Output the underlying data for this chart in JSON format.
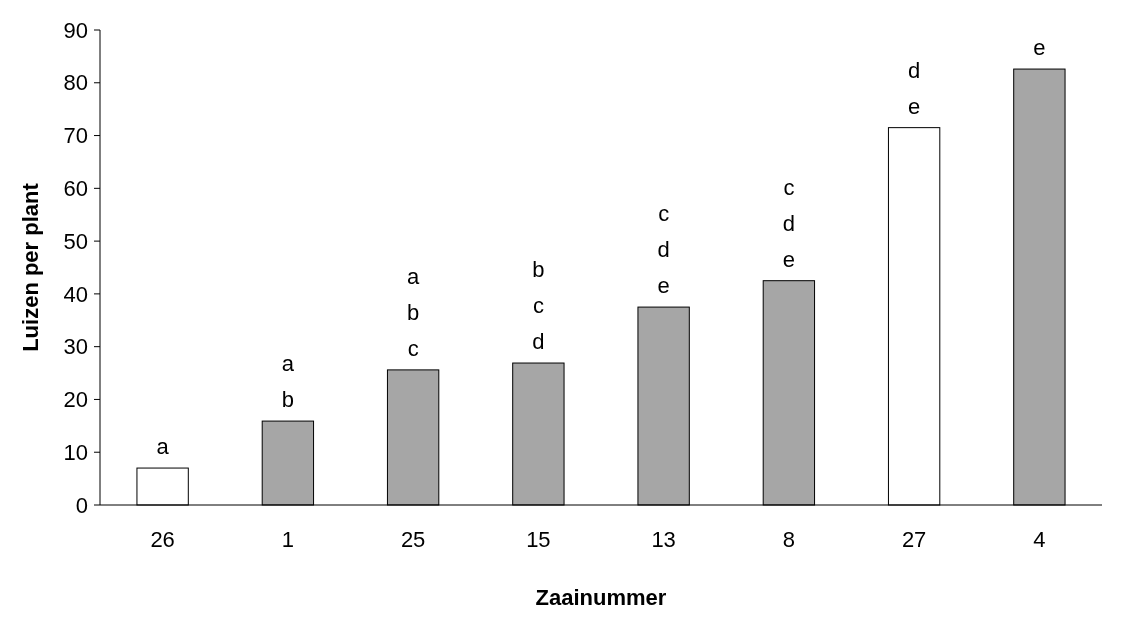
{
  "chart_data": {
    "type": "bar",
    "xlabel": "Zaainummer",
    "ylabel": "Luizen per plant",
    "categories": [
      "26",
      "1",
      "25",
      "15",
      "13",
      "8",
      "27",
      "4"
    ],
    "values": [
      7,
      15.9,
      25.6,
      26.9,
      37.5,
      42.5,
      71.5,
      82.6
    ],
    "colors": [
      "#ffffff",
      "#a6a6a6",
      "#a6a6a6",
      "#a6a6a6",
      "#a6a6a6",
      "#a6a6a6",
      "#ffffff",
      "#a6a6a6"
    ],
    "ylim": [
      0,
      90
    ],
    "yticks": [
      0,
      10,
      20,
      30,
      40,
      50,
      60,
      70,
      80,
      90
    ],
    "grid": false,
    "annotations": [
      {
        "text": "a",
        "x": "26",
        "y": 7
      },
      {
        "text": "a\nb",
        "x": "1",
        "y": 15.9
      },
      {
        "text": "a\nb\nc",
        "x": "25",
        "y": 25.6
      },
      {
        "text": "b\nc\nd",
        "x": "15",
        "y": 26.9
      },
      {
        "text": "c\nd\ne",
        "x": "13",
        "y": 37.5
      },
      {
        "text": "c\nd\ne",
        "x": "8",
        "y": 42.5
      },
      {
        "text": "d\ne",
        "x": "27",
        "y": 71.5
      },
      {
        "text": "e",
        "x": "4",
        "y": 82.6
      }
    ]
  }
}
